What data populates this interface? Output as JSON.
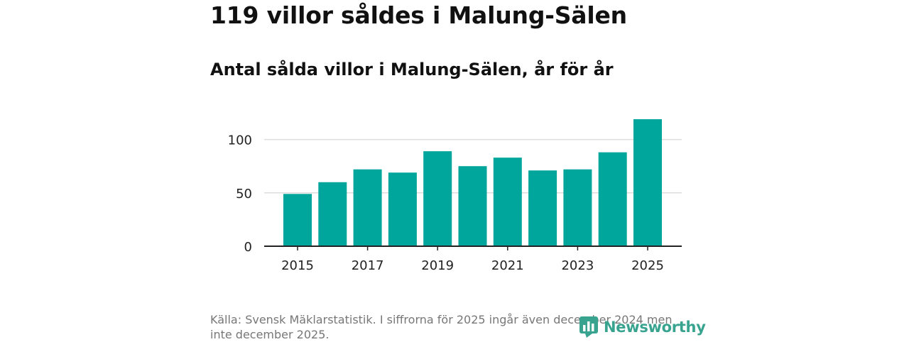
{
  "header": {
    "title": "119 villor såldes i Malung-Sälen",
    "subtitle": "Antal sålda villor i Malung-Sälen, år för år"
  },
  "footer": {
    "source": "Källa: Svensk Mäklarstatistik. I siffrorna för 2025 ingår även december 2024 men inte december 2025.",
    "brand": "Newsworthy"
  },
  "colors": {
    "bar": "#00a59b",
    "grid": "#dddddd",
    "axis": "#222222",
    "brand": "#38a38f"
  },
  "chart_data": {
    "type": "bar",
    "title": "Antal sålda villor i Malung-Sälen, år för år",
    "xlabel": "",
    "ylabel": "",
    "categories": [
      "2015",
      "2016",
      "2017",
      "2018",
      "2019",
      "2020",
      "2021",
      "2022",
      "2023",
      "2024",
      "2025"
    ],
    "values": [
      49,
      60,
      72,
      69,
      89,
      75,
      83,
      71,
      72,
      88,
      119
    ],
    "x_tick_labels": [
      "2015",
      "2017",
      "2019",
      "2021",
      "2023",
      "2025"
    ],
    "y_ticks": [
      0,
      50,
      100
    ],
    "ylim": [
      0,
      125
    ],
    "grid": true
  }
}
